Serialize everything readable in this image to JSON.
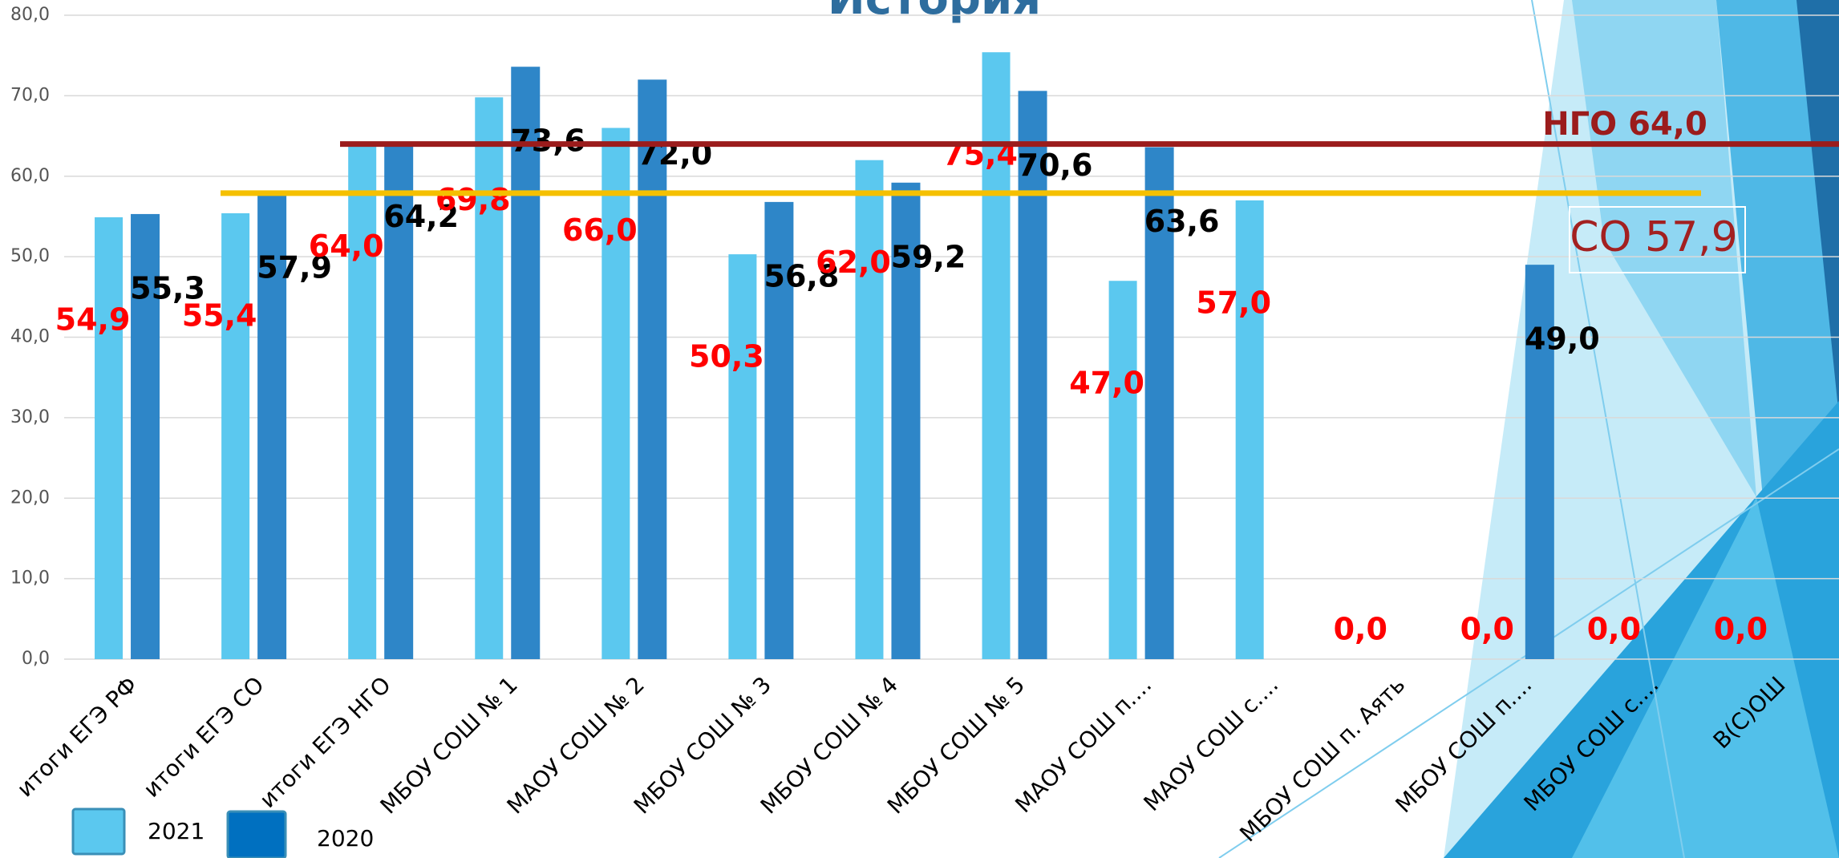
{
  "chart_data": {
    "type": "bar",
    "title": "История",
    "categories": [
      "итоги ЕГЭ РФ",
      "итоги ЕГЭ СО",
      "итоги ЕГЭ НГО",
      "МБОУ СОШ № 1",
      "МАОУ СОШ № 2",
      "МБОУ СОШ № 3",
      "МБОУ СОШ № 4",
      "МБОУ СОШ № 5",
      "МАОУ СОШ п....",
      "МАОУ СОШ с....",
      "МБОУ СОШ п. Аять",
      "МБОУ СОШ п....",
      "МБОУ СОШ с....",
      "В(С)ОШ"
    ],
    "series": [
      {
        "name": "2021",
        "color": "#5bc8ef",
        "label_color": "#ff0000",
        "values": [
          54.9,
          55.4,
          64.0,
          69.8,
          66.0,
          50.3,
          62.0,
          75.4,
          47.0,
          57.0,
          0.0,
          0.0,
          0.0,
          0.0
        ],
        "value_labels": [
          "54,9",
          "55,4",
          "64,0",
          "69,8",
          "66,0",
          "50,3",
          "62,0",
          "75,4",
          "47,0",
          "57,0",
          "0,0",
          "0,0",
          "0,0",
          "0,0"
        ]
      },
      {
        "name": "2020",
        "color": "#2e86c8",
        "label_color": "#000000",
        "values": [
          55.3,
          57.9,
          64.2,
          73.6,
          72.0,
          56.8,
          59.2,
          70.6,
          63.6,
          null,
          null,
          49.0,
          null,
          null
        ],
        "value_labels": [
          "55,3",
          "57,9",
          "64,2",
          "73,6",
          "72,0",
          "56,8",
          "59,2",
          "70,6",
          "63,6",
          null,
          null,
          "49,0",
          null,
          null
        ]
      }
    ],
    "reference_lines": [
      {
        "label": "НГО 64,0",
        "value": 64.0,
        "color": "#9b1c1c"
      },
      {
        "label": "СО 57,9",
        "value": 57.9,
        "color": "#f5c000"
      }
    ],
    "ylim": [
      0,
      80
    ],
    "yticks": [
      {
        "value": 0,
        "label": "0,0"
      },
      {
        "value": 10,
        "label": "10,0"
      },
      {
        "value": 20,
        "label": "20,0"
      },
      {
        "value": 30,
        "label": "30,0"
      },
      {
        "value": 40,
        "label": "40,0"
      },
      {
        "value": 50,
        "label": "50,0"
      },
      {
        "value": 60,
        "label": "60,0"
      },
      {
        "value": 70,
        "label": "70,0"
      },
      {
        "value": 80,
        "label": "80,0"
      }
    ],
    "grid": true
  }
}
